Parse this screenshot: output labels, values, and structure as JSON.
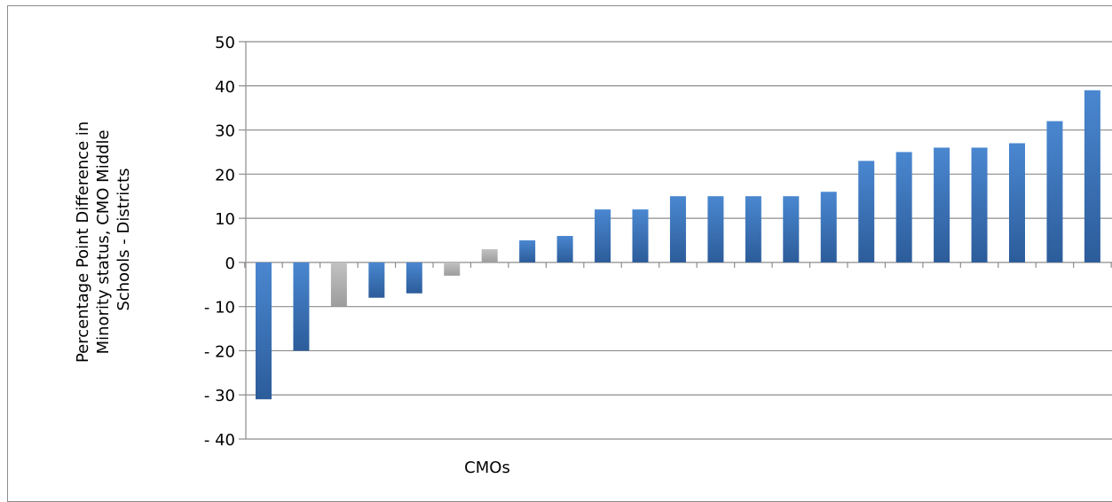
{
  "chart_data": {
    "type": "bar",
    "title": "",
    "xlabel": "CMOs",
    "ylabel": "Percentage Point Difference in Minority status, CMO Middle Schools - Districts",
    "ylabel_lines": [
      "Percentage Point Difference in",
      "Minority status, CMO Middle",
      "Schools -  Districts"
    ],
    "ylim": [
      -40,
      50
    ],
    "yticks": [
      50,
      40,
      30,
      20,
      10,
      0,
      -10,
      -20,
      -30,
      -40
    ],
    "ytick_labels": [
      "50",
      "40",
      "30",
      "20",
      "10",
      "0",
      "- 10",
      "- 20",
      "- 30",
      "- 40"
    ],
    "grid": true,
    "legend": "none",
    "colors": {
      "blue_top": "#4a87d0",
      "blue_bottom": "#2c5c9a",
      "gray_top": "#c2c2c2",
      "gray_bottom": "#9c9c9c",
      "grid": "#8c8c8c"
    },
    "values": [
      -31,
      -20,
      -10,
      -8,
      -7,
      -3,
      3,
      5,
      6,
      12,
      12,
      15,
      15,
      15,
      15,
      16,
      23,
      25,
      26,
      26,
      27,
      32,
      39
    ],
    "bar_colors": [
      "blue",
      "blue",
      "gray",
      "blue",
      "blue",
      "gray",
      "gray",
      "blue",
      "blue",
      "blue",
      "blue",
      "blue",
      "blue",
      "blue",
      "blue",
      "blue",
      "blue",
      "blue",
      "blue",
      "blue",
      "blue",
      "blue",
      "blue"
    ]
  }
}
